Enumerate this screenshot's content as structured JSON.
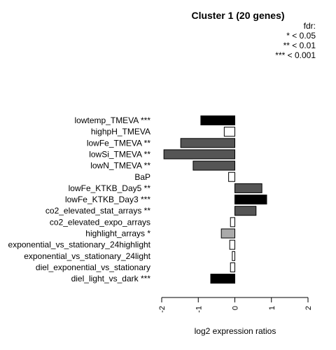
{
  "chart_data": {
    "type": "bar",
    "orientation": "horizontal",
    "title": "Cluster 1 (20 genes)",
    "xlabel": "log2 expression ratios",
    "ylabel": "",
    "xlim": [
      -2,
      2
    ],
    "xticks": [
      "-2",
      "-1",
      "0",
      "1",
      "2"
    ],
    "legend": {
      "title": "fdr:",
      "entries": [
        "* < 0.05",
        "** < 0.01",
        "*** < 0.001"
      ],
      "placement": "top-right"
    },
    "categories": [
      "lowtemp_TMEVA ***",
      "highpH_TMEVA",
      "lowFe_TMEVA **",
      "lowSi_TMEVA **",
      "lowN_TMEVA **",
      "BaP",
      "lowFe_KTKB_Day5 **",
      "lowFe_KTKB_Day3 ***",
      "co2_elevated_stat_arrays **",
      "co2_elevated_expo_arrays",
      "highlight_arrays *",
      "exponential_vs_stationary_24highlight",
      "exponential_vs_stationary_24light",
      "diel_exponential_vs_stationary",
      "diel_light_vs_dark ***"
    ],
    "values": [
      -0.93,
      -0.29,
      -1.48,
      -1.94,
      -1.14,
      -0.17,
      0.74,
      0.87,
      0.58,
      -0.12,
      -0.37,
      -0.14,
      -0.07,
      -0.12,
      -0.66
    ],
    "colors": [
      "#000000",
      "#ffffff",
      "#555555",
      "#555555",
      "#555555",
      "#ffffff",
      "#555555",
      "#000000",
      "#555555",
      "#ffffff",
      "#aaaaaa",
      "#ffffff",
      "#ffffff",
      "#ffffff",
      "#000000"
    ]
  }
}
